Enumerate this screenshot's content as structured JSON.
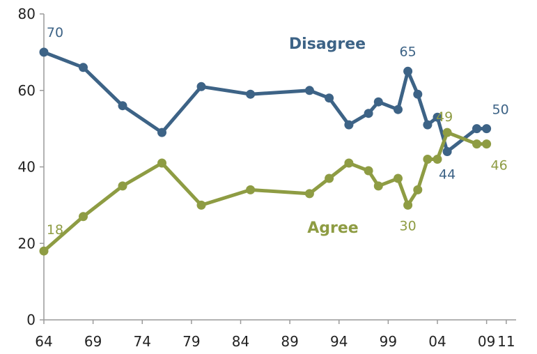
{
  "chart_data": {
    "type": "line",
    "title": "",
    "xlabel": "",
    "ylabel": "",
    "ylim": [
      0,
      80
    ],
    "yticks": [
      0,
      20,
      40,
      60,
      80
    ],
    "xlim": [
      1964,
      2012
    ],
    "xtick_values": [
      1964,
      1969,
      1974,
      1979,
      1984,
      1989,
      1994,
      1999,
      2004,
      2009,
      2011
    ],
    "xtick_labels": [
      "64",
      "69",
      "74",
      "79",
      "84",
      "89",
      "94",
      "99",
      "04",
      "09",
      "11"
    ],
    "grid": false,
    "legend": "none",
    "series": [
      {
        "name": "Disagree",
        "color": "#3d6386",
        "x": [
          1964,
          1968,
          1972,
          1976,
          1980,
          1985,
          1991,
          1993,
          1995,
          1997,
          1998,
          2000,
          2001,
          2002,
          2003,
          2004,
          2005,
          2008,
          2009
        ],
        "y": [
          70,
          66,
          56,
          49,
          61,
          59,
          60,
          58,
          51,
          54,
          57,
          55,
          65,
          59,
          51,
          53,
          44,
          50,
          50
        ]
      },
      {
        "name": "Agree",
        "color": "#8e9c43",
        "x": [
          1964,
          1968,
          1972,
          1976,
          1980,
          1985,
          1991,
          1993,
          1995,
          1997,
          1998,
          2000,
          2001,
          2002,
          2003,
          2004,
          2005,
          2008,
          2009
        ],
        "y": [
          18,
          27,
          35,
          41,
          30,
          34,
          33,
          37,
          41,
          39,
          35,
          37,
          30,
          34,
          42,
          42,
          49,
          46,
          46
        ]
      }
    ],
    "annotations": [
      {
        "series": 0,
        "point": 0,
        "text": "70"
      },
      {
        "series": 0,
        "point": 12,
        "text": "65"
      },
      {
        "series": 0,
        "point": 16,
        "text": "44"
      },
      {
        "series": 0,
        "point": 18,
        "text": "50"
      },
      {
        "series": 1,
        "point": 0,
        "text": "18"
      },
      {
        "series": 1,
        "point": 12,
        "text": "30"
      },
      {
        "series": 1,
        "point": 16,
        "text": "49"
      },
      {
        "series": 1,
        "point": 18,
        "text": "46"
      }
    ]
  }
}
